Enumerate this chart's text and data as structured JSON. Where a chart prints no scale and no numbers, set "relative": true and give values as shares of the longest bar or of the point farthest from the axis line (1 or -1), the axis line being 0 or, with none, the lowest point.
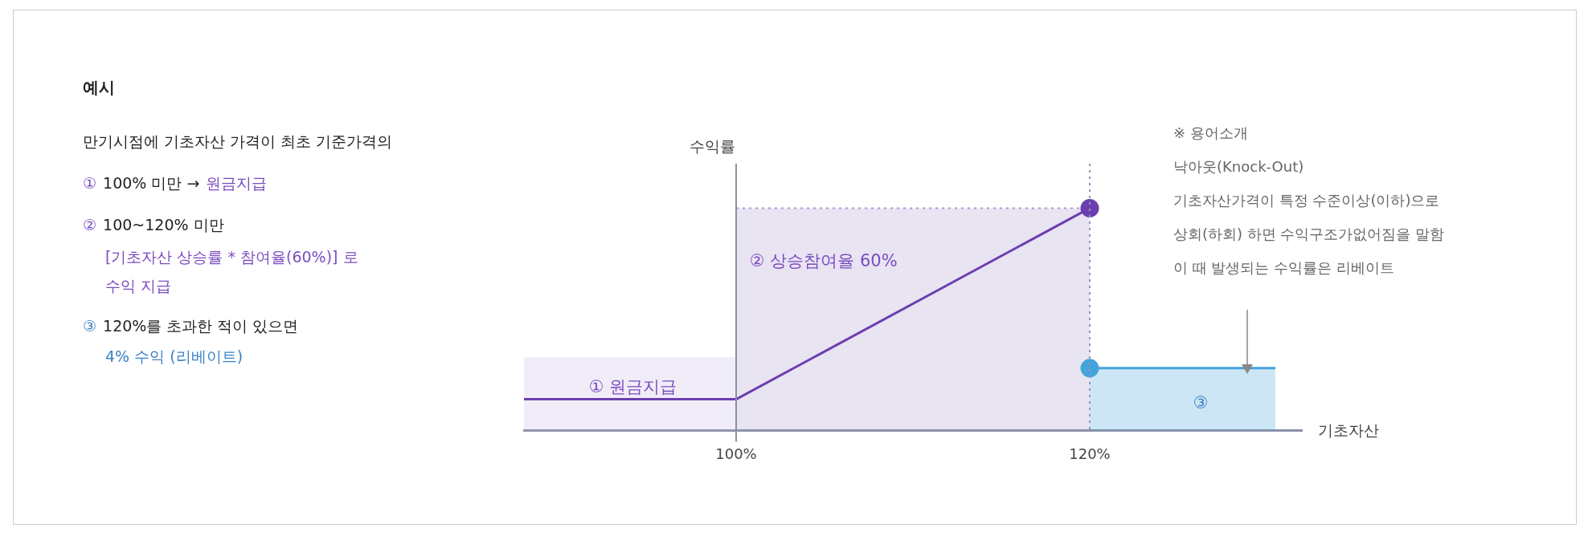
{
  "chart_data": {
    "type": "line",
    "title": "예시",
    "xlabel": "기초자산",
    "ylabel": "수익률",
    "relative": true,
    "grid": false,
    "legend": false,
    "xlim": [
      88,
      132
    ],
    "xticks": [
      {
        "value": 100,
        "label": "100%"
      },
      {
        "value": 120,
        "label": "120%"
      }
    ],
    "series": [
      {
        "type": "area",
        "color": "#c9bde6",
        "x": [
          88,
          100
        ],
        "values": [
          0.33,
          0.33
        ],
        "line_style": "none"
      },
      {
        "type": "area",
        "color": "#a99bd0",
        "x": [
          100,
          120
        ],
        "values": [
          1,
          1
        ],
        "line_style": "dotted"
      },
      {
        "type": "line",
        "color": "#6b3fb0",
        "x": [
          88,
          100,
          120
        ],
        "values": [
          0.14,
          0.14,
          1
        ],
        "line_style": "solid"
      },
      {
        "type": "area",
        "color": "#45a3dc",
        "x": [
          120,
          130.5
        ],
        "values": [
          0.28,
          0.28
        ],
        "line_style": "solid"
      },
      {
        "type": "scatter",
        "color": "#6b3fb0",
        "x": [
          120
        ],
        "values": [
          1
        ],
        "marker": "circle"
      },
      {
        "type": "scatter",
        "color": "#45a3dc",
        "x": [
          120
        ],
        "values": [
          0.28
        ],
        "marker": "circle"
      }
    ],
    "ref_lines": [
      {
        "axis": "x",
        "value": 100,
        "color": "#8a90a8",
        "line_style": "solid"
      },
      {
        "axis": "x",
        "value": 120,
        "color": "#8f96b8",
        "line_style": "dotted"
      }
    ],
    "annotations": [
      "만기시점에 기초자산 가격이 최초 기준가격의",
      "①",
      "100% 미만 →",
      "원금지급",
      "②",
      "100~120% 미만",
      "[기초자산 상승률 * 참여율(60%)] 로",
      "수익 지급",
      "③",
      "120%를 초과한 적이 있으면",
      "4% 수익 (리베이트)",
      "※ 용어소개",
      "낙아웃(Knock-Out)",
      "기초자산가격이 특정 수준이상(이하)으로",
      "상회(하회) 하면 수익구조가없어짐을 말함",
      "이 때 발생되는 수익률은 리베이트",
      "① 원금지급",
      "② 상승참여율 60%",
      "③"
    ]
  }
}
